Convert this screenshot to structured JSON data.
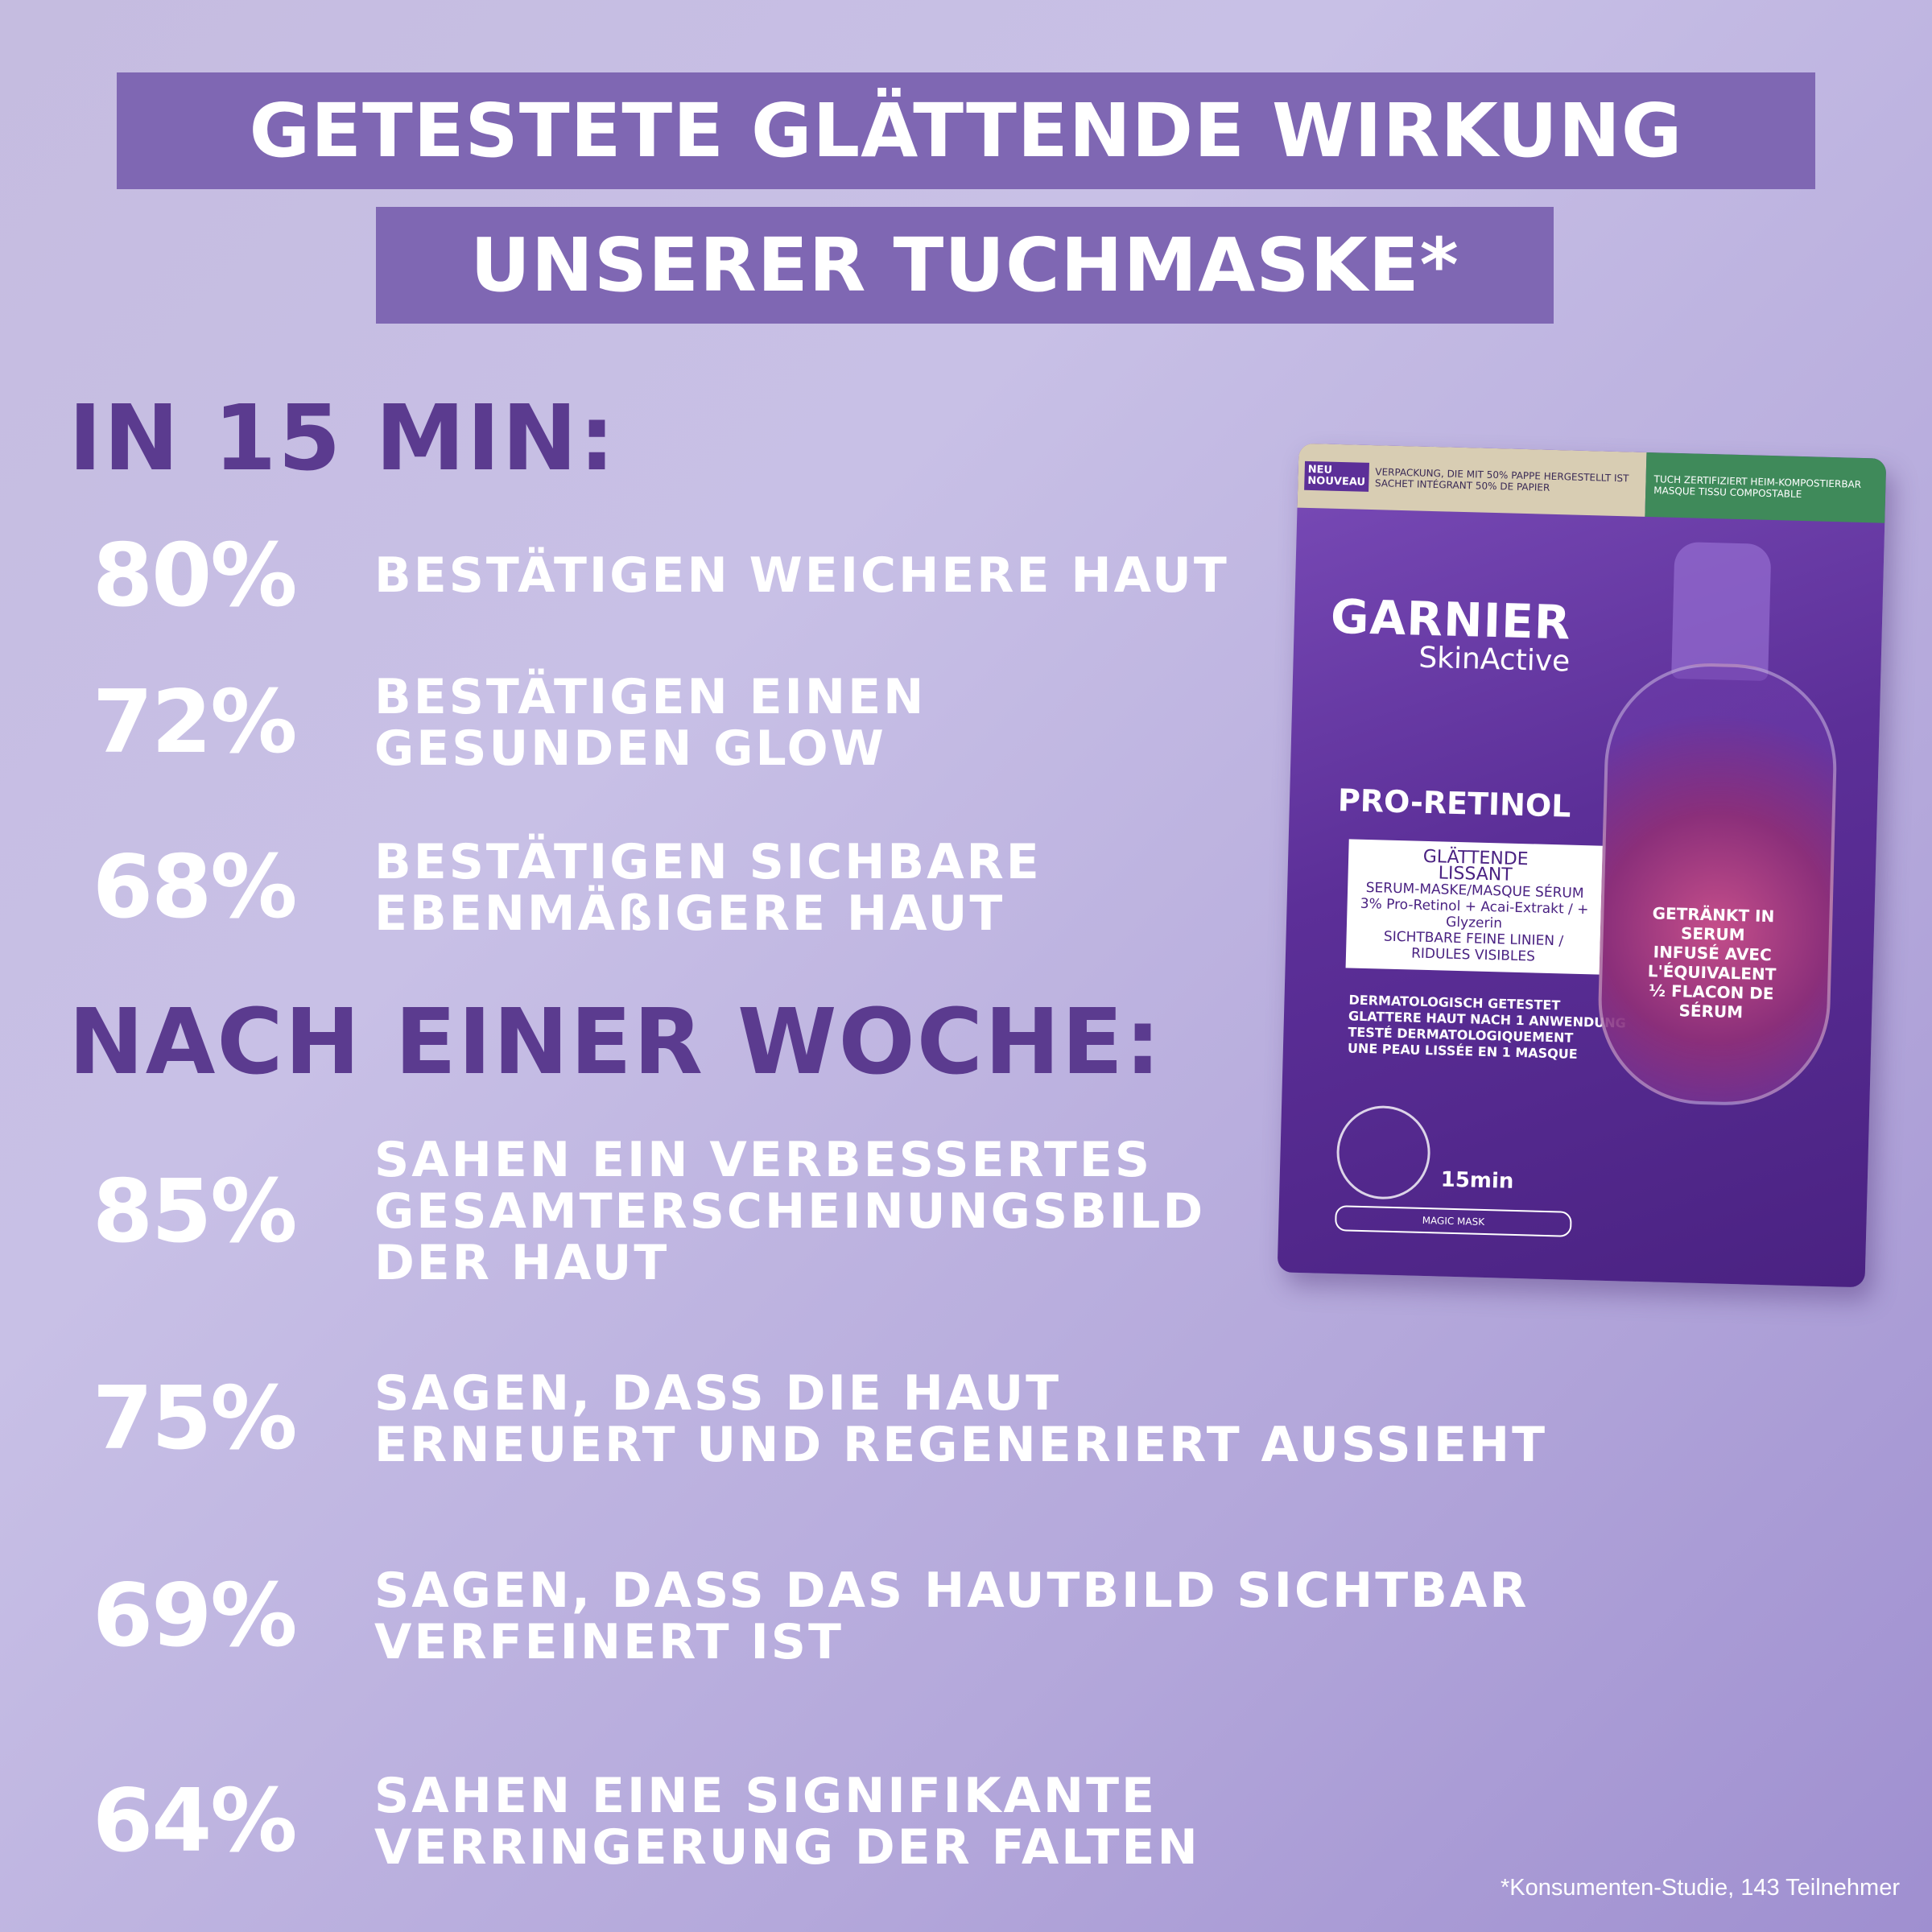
{
  "title": {
    "line1": "GETESTETE GLÄTTENDE WIRKUNG",
    "line2": "UNSERER TUCHMASKE*"
  },
  "sections": [
    {
      "heading": "IN 15 MIN:",
      "stats": [
        {
          "percent": "80%",
          "lines": [
            "BESTÄTIGEN WEICHERE HAUT"
          ]
        },
        {
          "percent": "72%",
          "lines": [
            "BESTÄTIGEN EINEN",
            "GESUNDEN GLOW"
          ]
        },
        {
          "percent": "68%",
          "lines": [
            "BESTÄTIGEN SICHBARE",
            "EBENMÄßIGERE HAUT"
          ]
        }
      ]
    },
    {
      "heading": "NACH EINER WOCHE:",
      "stats": [
        {
          "percent": "85%",
          "lines": [
            "SAHEN EIN VERBESSERTES",
            "GESAMTERSCHEINUNGSBILD",
            "DER HAUT"
          ]
        },
        {
          "percent": "75%",
          "lines": [
            "SAGEN, DASS DIE HAUT",
            "ERNEUERT UND REGENERIERT AUSSIEHT"
          ]
        },
        {
          "percent": "69%",
          "lines": [
            "SAGEN, DASS DAS HAUTBILD SICHTBAR",
            "VERFEINERT IST"
          ]
        },
        {
          "percent": "64%",
          "lines": [
            "SAHEN EINE SIGNIFIKANTE",
            "VERRINGERUNG DER FALTEN"
          ]
        }
      ]
    }
  ],
  "footnote": "*Konsumenten-Studie, 143 Teilnehmer",
  "package": {
    "badge": "NEU NOUVEAU",
    "top_left_text": "VERPACKUNG, DIE MIT 50% PAPPE HERGESTELLT IST SACHET INTÉGRANT 50% DE PAPIER",
    "top_right_text": "TUCH ZERTIFIZIERT HEIM-KOMPOSTIERBAR MASQUE TISSU COMPOSTABLE",
    "brand": "GARNIER",
    "sub_brand": "SkinActive",
    "product": "PRO-RETINOL",
    "box_line1": "GLÄTTENDE",
    "box_line2": "LISSANT",
    "box_line3": "SERUM-MASKE/MASQUE SÉRUM",
    "box_line4": "3% Pro-Retinol + Acai-Extrakt / + Glyzerin",
    "box_line5": "SICHTBARE FEINE LINIEN / RIDULES VISIBLES",
    "claim1": "DERMATOLOGISCH GETESTET",
    "claim2": "GLATTERE HAUT NACH 1 ANWENDUNG",
    "claim3": "TESTÉ DERMATOLOGIQUEMENT",
    "claim4": "UNE PEAU LISSÉE EN 1 MASQUE",
    "bottle_line1": "GETRÄNKT IN SERUM",
    "bottle_line2": "INFUSÉ AVEC L'ÉQUIVALENT",
    "bottle_line3": "½ FLACON DE SÉRUM",
    "time": "15min",
    "magic_mask": "MAGIC MASK"
  },
  "colors": {
    "title_bar": "#7f67b3",
    "heading": "#5b3b8f",
    "stat_text": "#ffffff"
  }
}
